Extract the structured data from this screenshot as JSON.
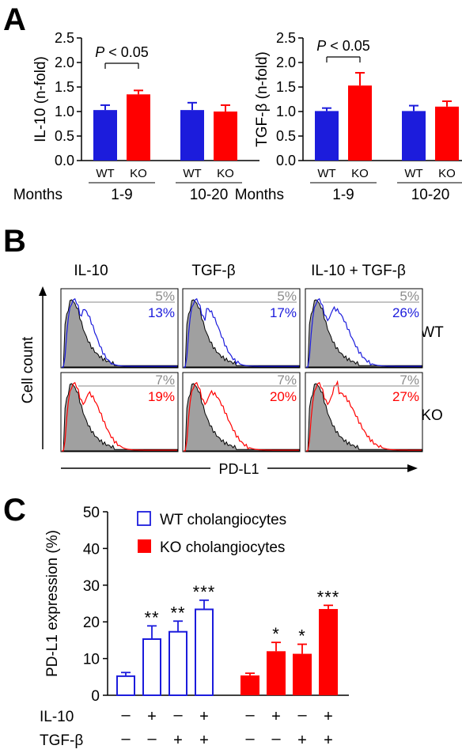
{
  "panels": {
    "a": {
      "letter": "A"
    },
    "b": {
      "letter": "B"
    },
    "c": {
      "letter": "C"
    }
  },
  "colors": {
    "wt": "#1c1cdc",
    "ko": "#ff0000",
    "control": "#a0a0a0",
    "axis": "#000000"
  },
  "chart_data": [
    {
      "panel": "A-left",
      "type": "bar",
      "ylabel": "IL-10 (n-fold)",
      "ylim": [
        0,
        2.5
      ],
      "yticks": [
        "0.0",
        "0.5",
        "1.0",
        "1.5",
        "2.0",
        "2.5"
      ],
      "categories": [
        "WT",
        "KO",
        "WT",
        "KO"
      ],
      "values": [
        1.03,
        1.35,
        1.03,
        1.0
      ],
      "errors": [
        0.1,
        0.08,
        0.15,
        0.13
      ],
      "colors": [
        "#1c1cdc",
        "#ff0000",
        "#1c1cdc",
        "#ff0000"
      ],
      "group_prefix": "Months",
      "groups": [
        "1-9",
        "10-20"
      ],
      "annotation": {
        "text": "P < 0.05",
        "p": "P",
        "rest": " < 0.05"
      }
    },
    {
      "panel": "A-right",
      "type": "bar",
      "ylabel": "TGF-β (n-fold)",
      "ylim": [
        0,
        2.5
      ],
      "yticks": [
        "0.0",
        "0.5",
        "1.0",
        "1.5",
        "2.0",
        "2.5"
      ],
      "categories": [
        "WT",
        "KO",
        "WT",
        "KO"
      ],
      "values": [
        1.01,
        1.53,
        1.01,
        1.1
      ],
      "errors": [
        0.06,
        0.26,
        0.11,
        0.11
      ],
      "colors": [
        "#1c1cdc",
        "#ff0000",
        "#1c1cdc",
        "#ff0000"
      ],
      "group_prefix": "Months",
      "groups": [
        "1-9",
        "10-20"
      ],
      "annotation": {
        "text": "P < 0.05",
        "p": "P",
        "rest": " < 0.05"
      }
    },
    {
      "panel": "B",
      "type": "histogram-grid",
      "columns": [
        "IL-10",
        "TGF-β",
        "IL-10 + TGF-β"
      ],
      "rows": [
        "WT",
        "KO"
      ],
      "ylabel": "Cell count",
      "xlabel": "PD-L1",
      "control_pct": [
        [
          "5%",
          "5%",
          "5%"
        ],
        [
          "7%",
          "7%",
          "7%"
        ]
      ],
      "treated_pct": [
        [
          "13%",
          "17%",
          "26%"
        ],
        [
          "19%",
          "20%",
          "27%"
        ]
      ]
    },
    {
      "panel": "C",
      "type": "bar",
      "ylabel": "PD-L1 expression (%)",
      "ylim": [
        0,
        50
      ],
      "yticks": [
        "0",
        "10",
        "20",
        "30",
        "40",
        "50"
      ],
      "series": [
        {
          "name": "WT cholangiocytes",
          "style": "open",
          "color": "#1c1cdc",
          "values": [
            5.2,
            15.3,
            17.3,
            23.4
          ],
          "errors": [
            1.0,
            3.6,
            2.9,
            2.5
          ],
          "significance": [
            "",
            "**",
            "**",
            "***"
          ]
        },
        {
          "name": "KO cholangiocytes",
          "style": "filled",
          "color": "#ff0000",
          "values": [
            5.4,
            12.0,
            11.3,
            23.5
          ],
          "errors": [
            0.6,
            2.4,
            2.6,
            1.0
          ],
          "significance": [
            "",
            "*",
            "*",
            "***"
          ]
        }
      ],
      "treatments": [
        {
          "label": "IL-10",
          "marks": [
            "–",
            "+",
            "–",
            "+",
            "–",
            "+",
            "–",
            "+"
          ]
        },
        {
          "label": "TGF-β",
          "marks": [
            "–",
            "–",
            "+",
            "+",
            "–",
            "–",
            "+",
            "+"
          ]
        }
      ]
    }
  ]
}
